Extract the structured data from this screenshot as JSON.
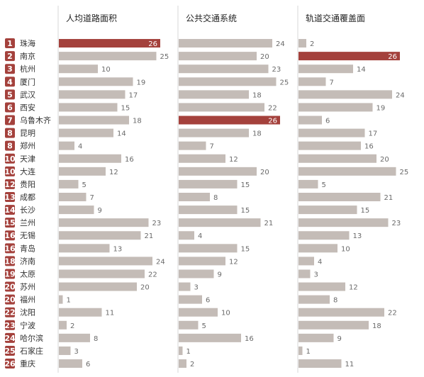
{
  "chart_data": {
    "type": "bar",
    "columns": [
      {
        "title": "人均道路面积",
        "key": "road_area"
      },
      {
        "title": "公共交通系统",
        "key": "public_transit"
      },
      {
        "title": "轨道交通覆盖面",
        "key": "rail_coverage"
      }
    ],
    "rows": [
      {
        "rank": "1",
        "city": "珠海",
        "values": [
          26,
          24,
          2
        ]
      },
      {
        "rank": "2",
        "city": "南京",
        "values": [
          25,
          20,
          26
        ]
      },
      {
        "rank": "3",
        "city": "杭州",
        "values": [
          10,
          23,
          14
        ]
      },
      {
        "rank": "4",
        "city": "厦门",
        "values": [
          19,
          25,
          7
        ]
      },
      {
        "rank": "5",
        "city": "武汉",
        "values": [
          17,
          18,
          24
        ]
      },
      {
        "rank": "6",
        "city": "西安",
        "values": [
          15,
          22,
          19
        ]
      },
      {
        "rank": "7",
        "city": "乌鲁木齐",
        "values": [
          18,
          26,
          6
        ]
      },
      {
        "rank": "8",
        "city": "昆明",
        "values": [
          14,
          18,
          17
        ]
      },
      {
        "rank": "8",
        "city": "郑州",
        "values": [
          4,
          7,
          16
        ]
      },
      {
        "rank": "10",
        "city": "天津",
        "values": [
          16,
          12,
          20
        ]
      },
      {
        "rank": "10",
        "city": "大连",
        "values": [
          12,
          20,
          25
        ]
      },
      {
        "rank": "12",
        "city": "贵阳",
        "values": [
          5,
          15,
          5
        ]
      },
      {
        "rank": "13",
        "city": "成都",
        "values": [
          7,
          8,
          21
        ]
      },
      {
        "rank": "14",
        "city": "长沙",
        "values": [
          9,
          15,
          15
        ]
      },
      {
        "rank": "15",
        "city": "兰州",
        "values": [
          23,
          21,
          23
        ]
      },
      {
        "rank": "16",
        "city": "无锡",
        "values": [
          21,
          4,
          13
        ]
      },
      {
        "rank": "16",
        "city": "青岛",
        "values": [
          13,
          15,
          10
        ]
      },
      {
        "rank": "18",
        "city": "济南",
        "values": [
          24,
          12,
          4
        ]
      },
      {
        "rank": "19",
        "city": "太原",
        "values": [
          22,
          9,
          3
        ]
      },
      {
        "rank": "20",
        "city": "苏州",
        "values": [
          20,
          3,
          12
        ]
      },
      {
        "rank": "20",
        "city": "福州",
        "values": [
          1,
          6,
          8
        ]
      },
      {
        "rank": "22",
        "city": "沈阳",
        "values": [
          11,
          10,
          22
        ]
      },
      {
        "rank": "23",
        "city": "宁波",
        "values": [
          2,
          5,
          18
        ]
      },
      {
        "rank": "24",
        "city": "哈尔滨",
        "values": [
          8,
          16,
          9
        ]
      },
      {
        "rank": "25",
        "city": "石家庄",
        "values": [
          3,
          1,
          1
        ]
      },
      {
        "rank": "26",
        "city": "重庆",
        "values": [
          6,
          2,
          11
        ]
      }
    ],
    "max_value": 26
  },
  "colors": {
    "bar": "#c4bcb7",
    "highlight": "#a4413c",
    "rank_badge": "#a4413c",
    "separator": "#d7d7d7"
  }
}
